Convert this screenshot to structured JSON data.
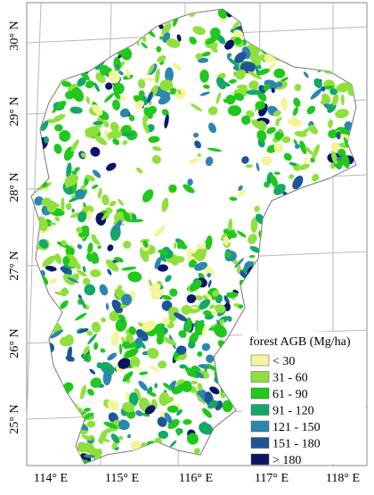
{
  "map": {
    "latitude_labels": [
      "30° N",
      "29° N",
      "28° N",
      "27° N",
      "26° N",
      "25° N"
    ],
    "longitude_labels": [
      "114° E",
      "115° E",
      "116° E",
      "117° E",
      "118° E"
    ],
    "legend": {
      "title": "forest AGB (Mg/ha)",
      "items": [
        {
          "label": "< 30",
          "color": "#f4f49a"
        },
        {
          "label": "31 - 60",
          "color": "#8fe03c"
        },
        {
          "label": "61 - 90",
          "color": "#1fc81a"
        },
        {
          "label": "91 - 120",
          "color": "#12a868"
        },
        {
          "label": "121 - 150",
          "color": "#2b86b0"
        },
        {
          "label": "151 - 180",
          "color": "#1d5596"
        },
        {
          "label": "> 180",
          "color": "#0b1468"
        }
      ]
    }
  }
}
